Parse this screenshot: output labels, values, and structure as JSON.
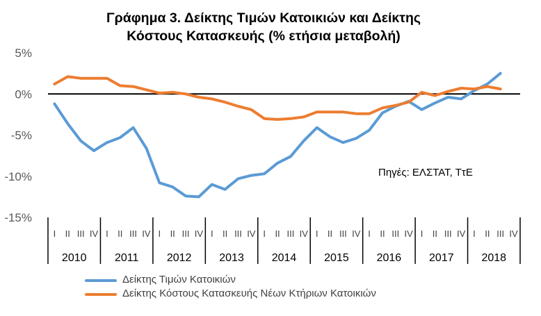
{
  "chart_data": {
    "type": "line",
    "title_lines": [
      "Γράφημα 3. Δείκτης Τιμών Κατοικιών και Δείκτης",
      "Κόστους Κατασκευής (% ετήσια μεταβολή)"
    ],
    "annotation": "Πηγές: ΕΛΣΤΑΤ, ΤτΕ",
    "ylim": [
      -15,
      5
    ],
    "yticks": [
      5,
      0,
      -5,
      -10,
      -15
    ],
    "ytick_labels": [
      "5%",
      "0%",
      "-5%",
      "-10%",
      "-15%"
    ],
    "quarter_labels": [
      "I",
      "II",
      "III",
      "IV"
    ],
    "years": [
      "2010",
      "2011",
      "2012",
      "2013",
      "2014",
      "2015",
      "2016",
      "2017",
      "2018"
    ],
    "zero_line": true,
    "legend_position": "bottom",
    "series": [
      {
        "name": "Δείκτης Τιμών Κατοικιών",
        "color": "#5B9BD5",
        "values": [
          -1.2,
          -3.6,
          -5.7,
          -6.9,
          -5.9,
          -5.3,
          -4.1,
          -6.6,
          -10.8,
          -11.3,
          -12.4,
          -12.5,
          -11.0,
          -11.6,
          -10.3,
          -9.9,
          -9.7,
          -8.4,
          -7.6,
          -5.7,
          -4.1,
          -5.2,
          -5.9,
          -5.4,
          -4.4,
          -2.3,
          -1.5,
          -0.9,
          -1.9,
          -1.1,
          -0.4,
          -0.6,
          0.4,
          1.2,
          2.5
        ]
      },
      {
        "name": "Δείκτης Κόστους Κατασκευής Νέων Κτήριων Κατοικιών",
        "color": "#ED7D31",
        "values": [
          1.2,
          2.1,
          1.9,
          1.9,
          1.9,
          1.0,
          0.9,
          0.5,
          0.1,
          0.2,
          0.0,
          -0.4,
          -0.6,
          -1.0,
          -1.5,
          -1.9,
          -3.0,
          -3.1,
          -3.0,
          -2.8,
          -2.2,
          -2.2,
          -2.2,
          -2.4,
          -2.4,
          -1.7,
          -1.4,
          -1.0,
          0.2,
          -0.2,
          0.3,
          0.7,
          0.6,
          0.9,
          0.6
        ]
      }
    ]
  }
}
